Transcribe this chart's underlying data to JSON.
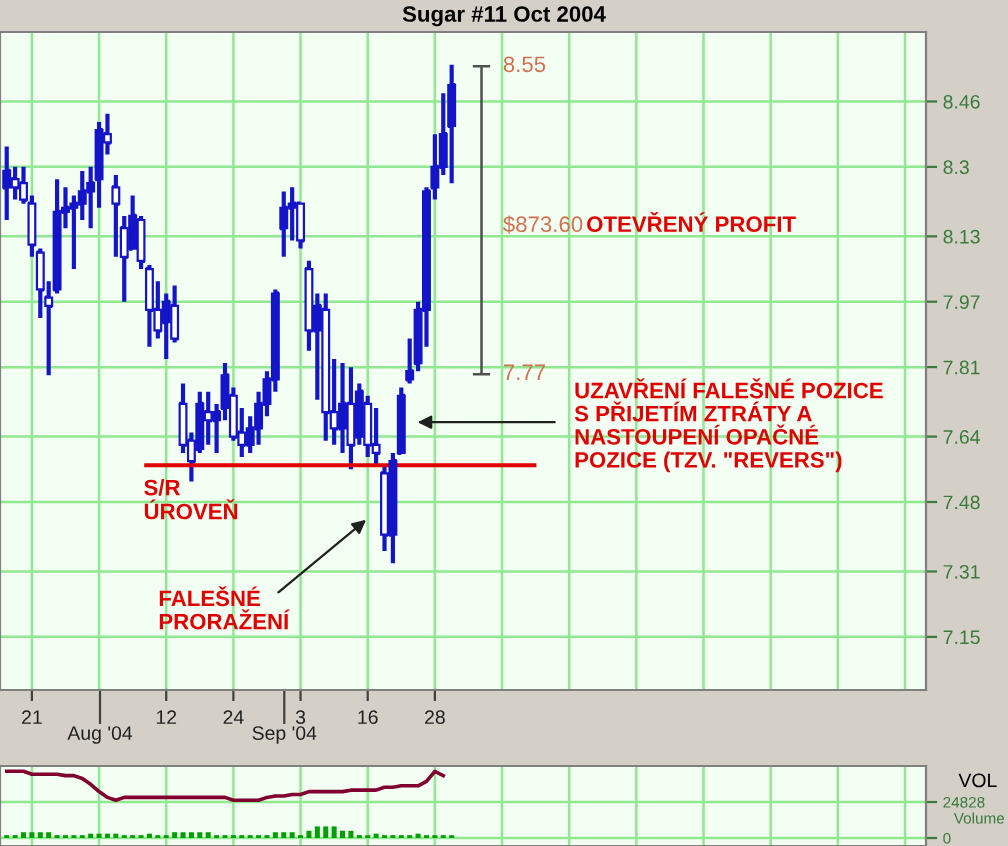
{
  "chart_data": [
    {
      "type": "candlestick",
      "title": "Sugar #11 Oct 2004",
      "color": "#1414c8",
      "categories": [
        null,
        null,
        null,
        "21",
        null,
        null,
        null,
        null,
        null,
        null,
        null,
        null,
        null,
        null,
        null,
        null,
        null,
        null,
        null,
        "12",
        null,
        null,
        null,
        null,
        null,
        null,
        null,
        "24",
        null,
        null,
        null,
        null,
        null,
        null,
        null,
        "3",
        null,
        null,
        null,
        null,
        null,
        null,
        null,
        "16",
        null,
        null,
        null,
        null,
        null,
        null,
        null,
        "28",
        null,
        null,
        null,
        null,
        null,
        null,
        null,
        null,
        null,
        null,
        null,
        null,
        null,
        null,
        null,
        null,
        null,
        null,
        null,
        null,
        null,
        null,
        null,
        null,
        null,
        null,
        null,
        null,
        null,
        null,
        null,
        null,
        null,
        null,
        null,
        null,
        null,
        null,
        null,
        null,
        null,
        null,
        null,
        null,
        null,
        null,
        null,
        null,
        null,
        null,
        null,
        null,
        null,
        null,
        null,
        null,
        null,
        null
      ],
      "ohlc": [
        [
          8.25,
          8.35,
          8.17,
          8.29
        ],
        [
          8.27,
          8.3,
          8.22,
          8.25
        ],
        [
          8.26,
          8.3,
          8.21,
          8.22
        ],
        [
          8.21,
          8.23,
          8.08,
          8.11
        ],
        [
          8.09,
          8.1,
          7.93,
          8.0
        ],
        [
          7.98,
          8.02,
          7.79,
          7.96
        ],
        [
          8.0,
          8.27,
          7.99,
          8.19
        ],
        [
          8.19,
          8.25,
          8.15,
          8.2
        ],
        [
          8.2,
          8.23,
          8.05,
          8.21
        ],
        [
          8.21,
          8.29,
          8.17,
          8.24
        ],
        [
          8.24,
          8.3,
          8.15,
          8.26
        ],
        [
          8.27,
          8.41,
          8.2,
          8.39
        ],
        [
          8.38,
          8.43,
          8.33,
          8.36
        ],
        [
          8.25,
          8.28,
          8.08,
          8.21
        ],
        [
          8.15,
          8.18,
          7.97,
          8.08
        ],
        [
          8.1,
          8.23,
          8.1,
          8.18
        ],
        [
          8.17,
          8.18,
          8.05,
          8.07
        ],
        [
          8.05,
          8.06,
          7.86,
          7.95
        ],
        [
          7.95,
          8.02,
          7.88,
          7.9
        ],
        [
          7.92,
          7.99,
          7.83,
          7.97
        ],
        [
          7.96,
          8.01,
          7.87,
          7.88
        ],
        [
          7.72,
          7.77,
          7.6,
          7.62
        ],
        [
          7.63,
          7.65,
          7.53,
          7.58
        ],
        [
          7.61,
          7.75,
          7.6,
          7.72
        ],
        [
          7.7,
          7.75,
          7.62,
          7.68
        ],
        [
          7.68,
          7.72,
          7.6,
          7.7
        ],
        [
          7.71,
          7.82,
          7.68,
          7.79
        ],
        [
          7.74,
          7.76,
          7.63,
          7.64
        ],
        [
          7.65,
          7.71,
          7.59,
          7.62
        ],
        [
          7.62,
          7.69,
          7.6,
          7.66
        ],
        [
          7.66,
          7.75,
          7.62,
          7.72
        ],
        [
          7.72,
          7.8,
          7.69,
          7.78
        ],
        [
          7.78,
          8.0,
          7.75,
          7.99
        ],
        [
          8.15,
          8.24,
          8.08,
          8.2
        ],
        [
          8.2,
          8.25,
          8.12,
          8.21
        ],
        [
          8.21,
          8.21,
          8.1,
          8.12
        ],
        [
          8.05,
          8.07,
          7.85,
          7.9
        ],
        [
          7.9,
          7.99,
          7.73,
          7.96
        ],
        [
          7.95,
          7.99,
          7.63,
          7.7
        ],
        [
          7.7,
          7.83,
          7.62,
          7.66
        ],
        [
          7.66,
          7.82,
          7.6,
          7.72
        ],
        [
          7.72,
          7.81,
          7.56,
          7.62
        ],
        [
          7.64,
          7.77,
          7.62,
          7.75
        ],
        [
          7.72,
          7.74,
          7.59,
          7.62
        ],
        [
          7.62,
          7.71,
          7.57,
          7.6
        ],
        [
          7.55,
          7.57,
          7.36,
          7.4
        ],
        [
          7.4,
          7.6,
          7.33,
          7.58
        ],
        [
          7.6,
          7.76,
          7.6,
          7.74
        ],
        [
          7.78,
          7.88,
          7.77,
          7.8
        ],
        [
          7.82,
          7.97,
          7.8,
          7.95
        ],
        [
          7.95,
          8.25,
          7.86,
          8.24
        ],
        [
          8.25,
          8.38,
          8.22,
          8.3
        ],
        [
          8.3,
          8.48,
          8.28,
          8.38
        ],
        [
          8.4,
          8.55,
          8.26,
          8.5
        ],
        null,
        null,
        null,
        null,
        null,
        null,
        null,
        null,
        null,
        null,
        null,
        null,
        null,
        null,
        null,
        null,
        null,
        null,
        null,
        null,
        null,
        null,
        null,
        null,
        null,
        null,
        null,
        null,
        null,
        null,
        null,
        null,
        null,
        null,
        null,
        null,
        null,
        null,
        null,
        null,
        null,
        null,
        null,
        null,
        null,
        null,
        null,
        null,
        null,
        null,
        null,
        null,
        null,
        null,
        null,
        null
      ],
      "ylim": [
        7.02,
        8.63
      ],
      "yticks": [
        7.15,
        7.31,
        7.48,
        7.64,
        7.81,
        7.97,
        8.13,
        8.3,
        8.46
      ],
      "grid": true,
      "ref_lines": [
        {
          "axis": "y",
          "value": 7.57,
          "label": "S/R\nÚROVEŇ",
          "color": "#e00000"
        }
      ],
      "annotations": [
        "Aug '04",
        "Sep '04",
        "8.55",
        "7.77",
        "$873.60",
        "OTEVŘENÝ PROFIT",
        "UZAVŘENÍ FALEŠNÉ POZICE\nS PŘIJETÍM ZTRÁTY A\nNASTOUPENÍ OPAČNÉ\nPOZICE (TZV. \"REVERS\")",
        "FALEŠNÉ\nPRORAŽENÍ"
      ]
    },
    {
      "type": "bar",
      "ylabel": "VOL",
      "annotations": [
        "Volume"
      ],
      "tick_labels": "y",
      "grid": true,
      "categories": [
        null,
        null,
        null,
        null,
        null,
        null,
        null,
        null,
        null,
        null,
        null,
        null,
        null,
        null,
        null,
        null,
        null,
        null,
        null,
        null,
        null,
        null,
        null,
        null,
        null,
        null,
        null,
        null,
        null,
        null,
        null,
        null,
        null,
        null,
        null,
        null,
        null,
        null,
        null,
        null,
        null,
        null,
        null,
        null,
        null,
        null,
        null,
        null,
        null,
        null,
        null,
        null,
        null,
        null,
        null,
        null,
        null,
        null,
        null,
        null,
        null,
        null,
        null,
        null,
        null,
        null,
        null,
        null,
        null,
        null,
        null,
        null,
        null,
        null,
        null,
        null,
        null,
        null,
        null,
        null,
        null,
        null,
        null,
        null,
        null,
        null,
        null,
        null,
        null,
        null,
        null,
        null,
        null,
        null,
        null,
        null,
        null,
        null,
        null,
        null,
        null,
        null,
        null,
        null,
        null,
        null,
        null,
        null,
        null,
        null
      ],
      "ylim": [
        -5500,
        49656
      ],
      "yticks": [
        0,
        24828
      ],
      "series": [
        {
          "type": "bar",
          "color": "#00a000",
          "values": [
            2000,
            2000,
            4000,
            4000,
            4000,
            4000,
            2000,
            2000,
            2000,
            2000,
            3000,
            3000,
            3000,
            3000,
            2000,
            2000,
            2000,
            3000,
            2000,
            2000,
            4000,
            4000,
            4000,
            4000,
            4000,
            2000,
            2000,
            2000,
            2000,
            2000,
            2000,
            2000,
            4000,
            4000,
            4000,
            2000,
            5000,
            8000,
            8000,
            8000,
            5000,
            5000,
            2000,
            2000,
            3000,
            2000,
            2000,
            2000,
            2000,
            3000,
            2000,
            2000,
            2000,
            2000,
            null,
            null,
            null,
            null,
            null,
            null,
            null,
            null,
            null,
            null,
            null,
            null,
            null,
            null,
            null,
            null,
            null,
            null,
            null,
            null,
            null,
            null,
            null,
            null,
            null,
            null,
            null,
            null,
            null,
            null,
            null,
            null,
            null,
            null,
            null,
            null,
            null,
            null,
            null,
            null,
            null,
            null,
            null,
            null,
            null,
            null,
            null,
            null,
            null,
            null,
            null,
            null,
            null,
            null,
            null,
            null
          ]
        },
        {
          "type": "line",
          "color": "#800030",
          "values": [
            46000,
            46000,
            46000,
            44000,
            44000,
            44000,
            44000,
            43000,
            43000,
            41000,
            37000,
            32000,
            28000,
            26000,
            28000,
            28000,
            28000,
            28000,
            28000,
            28000,
            28000,
            28000,
            28000,
            28000,
            28000,
            28000,
            28000,
            26000,
            26000,
            26000,
            26000,
            28000,
            29000,
            29000,
            30000,
            30000,
            32000,
            32000,
            32000,
            32000,
            32000,
            33000,
            33000,
            33000,
            33000,
            35000,
            35000,
            36000,
            36000,
            36000,
            39000,
            46000,
            43000,
            null,
            null,
            null,
            null,
            null,
            null,
            null,
            null,
            null,
            null,
            null,
            null,
            null,
            null,
            null,
            null,
            null,
            null,
            null,
            null,
            null,
            null,
            null,
            null,
            null,
            null,
            null,
            null,
            null,
            null,
            null,
            null,
            null,
            null,
            null,
            null,
            null,
            null,
            null,
            null,
            null,
            null,
            null,
            null,
            null,
            null,
            null,
            null,
            null,
            null,
            null,
            null,
            null,
            null,
            null,
            null,
            null
          ]
        }
      ]
    }
  ]
}
